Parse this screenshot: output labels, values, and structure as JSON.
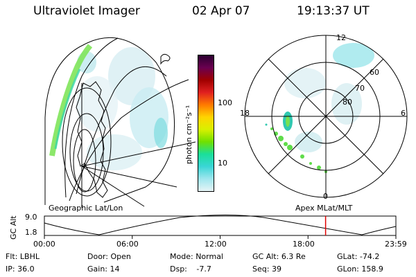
{
  "header": {
    "title": "Ultraviolet Imager",
    "date": "02 Apr 07",
    "time": "19:13:37 UT"
  },
  "left_panel": {
    "caption": "Geographic Lat/Lon"
  },
  "right_panel": {
    "caption": "Apex MLat/MLT",
    "mlt_labels": {
      "top": "12",
      "left": "18",
      "right": "6",
      "bottom": "0"
    },
    "lat_labels": [
      "60",
      "70",
      "80"
    ]
  },
  "colorbar": {
    "unit_label": "photon cm⁻²s⁻¹",
    "ticks": [
      "100",
      "10"
    ],
    "colors": [
      "#2b0030",
      "#6a0050",
      "#a00000",
      "#e02020",
      "#ff7a00",
      "#ffd400",
      "#d8f000",
      "#70e000",
      "#1adf9a",
      "#3ad6d6",
      "#9fe6ee",
      "#e6f4f6"
    ]
  },
  "timeline": {
    "y_label": "GC Alt",
    "y_max": "9.0",
    "y_min": "1.8",
    "x_ticks": [
      "00:00",
      "06:00",
      "12:00",
      "18:00",
      "23:59"
    ],
    "current_fraction": 0.8
  },
  "info": {
    "filter_label": "Flt:",
    "filter": "LBHL",
    "door_label": "Door:",
    "door": "Open",
    "mode_label": "Mode:",
    "mode": "Normal",
    "gcalt_label": "GC Alt:",
    "gcalt": "6.3 Re",
    "glat_label": "GLat:",
    "glat": "-74.2",
    "ip_label": "IP:",
    "ip": "36.0",
    "gain_label": "Gain:",
    "gain": "14",
    "dsp_label": "Dsp:",
    "dsp": "-7.7",
    "seq_label": "Seq:",
    "seq": "39",
    "glon_label": "GLon:",
    "glon": "158.9"
  }
}
